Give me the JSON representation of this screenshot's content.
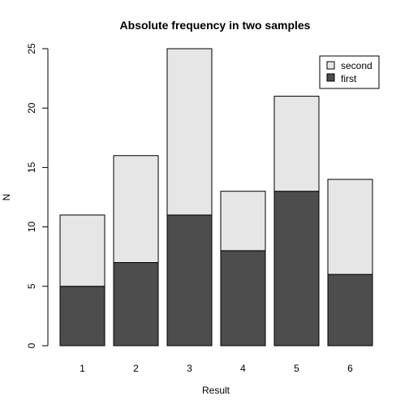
{
  "chart_data": {
    "type": "bar",
    "stacked": true,
    "title": "Absolute frequency in two samples",
    "xlabel": "Result",
    "ylabel": "N",
    "categories": [
      "1",
      "2",
      "3",
      "4",
      "5",
      "6"
    ],
    "series": [
      {
        "name": "first",
        "values": [
          5,
          7,
          11,
          8,
          13,
          6
        ],
        "color": "#4d4d4d"
      },
      {
        "name": "second",
        "values": [
          6,
          9,
          14,
          5,
          8,
          8
        ],
        "color": "#e6e6e6"
      }
    ],
    "ylim": [
      0,
      25
    ],
    "yticks": [
      "0",
      "5",
      "10",
      "15",
      "20",
      "25"
    ],
    "legend": {
      "position": "top-right",
      "order": [
        "second",
        "first"
      ]
    },
    "grid": false
  }
}
